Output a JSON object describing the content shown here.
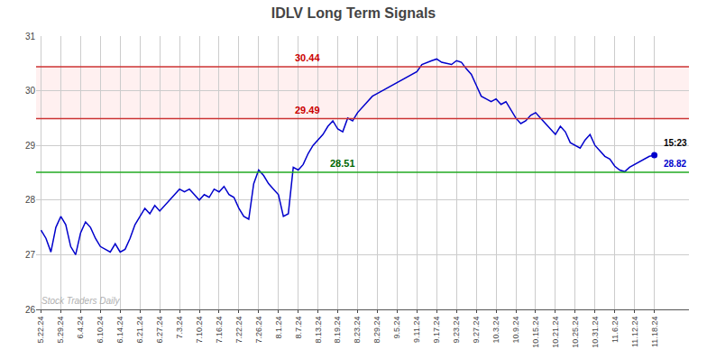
{
  "chart_data": {
    "type": "line",
    "title": "IDLV Long Term Signals",
    "categories": [
      "5.22.24",
      null,
      null,
      null,
      "5.29.24",
      null,
      null,
      null,
      "6.4.24",
      null,
      null,
      null,
      "6.10.24",
      null,
      null,
      null,
      "6.14.24",
      null,
      null,
      null,
      "6.21.24",
      null,
      null,
      null,
      "6.27.24",
      null,
      null,
      null,
      "7.3.24",
      null,
      null,
      null,
      "7.10.24",
      null,
      null,
      null,
      "7.16.24",
      null,
      null,
      null,
      "7.22.24",
      null,
      null,
      null,
      "7.26.24",
      null,
      null,
      null,
      "8.1.24",
      null,
      null,
      null,
      "8.7.24",
      null,
      null,
      null,
      "8.13.24",
      null,
      null,
      null,
      "8.19.24",
      null,
      null,
      null,
      "8.23.24",
      null,
      null,
      null,
      "8.29.24",
      null,
      null,
      null,
      "9.5.24",
      null,
      null,
      null,
      "9.11.24",
      null,
      null,
      null,
      "9.17.24",
      null,
      null,
      null,
      "9.23.24",
      null,
      null,
      null,
      "9.27.24",
      null,
      null,
      null,
      "10.3.24",
      null,
      null,
      null,
      "10.9.24",
      null,
      null,
      null,
      "10.15.24",
      null,
      null,
      null,
      "10.21.24",
      null,
      null,
      null,
      "10.25.24",
      null,
      null,
      null,
      "10.31.24",
      null,
      null,
      null,
      "11.6.24",
      null,
      null,
      null,
      "11.12.24",
      null,
      null,
      null,
      "11.18.24"
    ],
    "series": [
      {
        "color": "#0000cc",
        "values": [
          27.45,
          27.3,
          27.05,
          27.5,
          27.7,
          27.55,
          27.15,
          27.0,
          27.4,
          27.6,
          27.5,
          27.3,
          27.15,
          27.1,
          27.05,
          27.2,
          27.05,
          27.1,
          27.3,
          27.55,
          27.7,
          27.85,
          27.75,
          27.9,
          27.8,
          27.9,
          28.0,
          28.1,
          28.2,
          28.15,
          28.2,
          28.1,
          28.0,
          28.1,
          28.05,
          28.2,
          28.15,
          28.25,
          28.1,
          28.05,
          27.85,
          27.7,
          27.65,
          28.3,
          28.55,
          28.45,
          28.3,
          28.2,
          28.1,
          27.7,
          27.75,
          28.6,
          28.55,
          28.65,
          28.85,
          29.0,
          29.1,
          29.2,
          29.35,
          29.45,
          29.3,
          29.25,
          29.5,
          29.45,
          29.6,
          29.7,
          29.8,
          29.9,
          29.95,
          30.0,
          30.05,
          30.1,
          30.15,
          30.2,
          30.25,
          30.3,
          30.35,
          30.48,
          30.52,
          30.55,
          30.58,
          30.52,
          30.5,
          30.48,
          30.55,
          30.52,
          30.4,
          30.3,
          30.1,
          29.9,
          29.85,
          29.8,
          29.85,
          29.75,
          29.8,
          29.65,
          29.5,
          29.4,
          29.45,
          29.55,
          29.6,
          29.5,
          29.4,
          29.3,
          29.2,
          29.35,
          29.25,
          29.05,
          29.0,
          28.95,
          29.1,
          29.2,
          29.0,
          28.9,
          28.8,
          28.75,
          28.62,
          28.55,
          28.52,
          28.6,
          28.65,
          28.7,
          28.75,
          28.8,
          28.82
        ]
      }
    ],
    "hlines": [
      {
        "value": 28.51,
        "color": "#22aa22"
      },
      {
        "value": 29.49,
        "color": "#cc3333"
      },
      {
        "value": 30.44,
        "color": "#cc3333"
      }
    ],
    "band": {
      "from": 29.49,
      "to": 30.44,
      "color": "#ffaaaa"
    },
    "annotations": [
      {
        "text": "28.51",
        "x": 58,
        "y": 28.51,
        "color": "#006600"
      },
      {
        "text": "29.49",
        "x": 51,
        "y": 29.49,
        "color": "#cc0000"
      },
      {
        "text": "30.44",
        "x": 51,
        "y": 30.44,
        "color": "#cc0000"
      }
    ],
    "last_point": {
      "time": "15:23",
      "time_color": "#000000",
      "price": "28.82",
      "price_color": "#0000cc"
    },
    "watermark": {
      "text": "Stock Traders Daily",
      "color": "#b0b0b0"
    },
    "ylim": [
      26,
      31
    ],
    "yticks": [
      26,
      27,
      28,
      29,
      30,
      31
    ],
    "grid": true,
    "grid_color": "#cccccc",
    "bg_color": "#ffffff"
  }
}
